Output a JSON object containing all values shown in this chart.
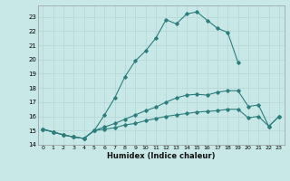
{
  "xlabel": "Humidex (Indice chaleur)",
  "bg_color": "#c8e8e8",
  "grid_color": "#b8d8d8",
  "line_color": "#2e7d7d",
  "xlim": [
    -0.5,
    23.5
  ],
  "ylim": [
    14.0,
    23.8
  ],
  "yticks": [
    14,
    15,
    16,
    17,
    18,
    19,
    20,
    21,
    22,
    23
  ],
  "xticks": [
    0,
    1,
    2,
    3,
    4,
    5,
    6,
    7,
    8,
    9,
    10,
    11,
    12,
    13,
    14,
    15,
    16,
    17,
    18,
    19,
    20,
    21,
    22,
    23
  ],
  "line1_x": [
    0,
    1,
    2,
    3,
    4,
    5,
    6,
    7,
    8,
    9,
    10,
    11,
    12,
    13,
    14,
    15,
    16,
    17,
    18,
    19
  ],
  "line1_y": [
    15.1,
    14.9,
    14.7,
    14.55,
    14.45,
    15.0,
    16.1,
    17.3,
    18.8,
    19.9,
    20.6,
    21.5,
    22.8,
    22.5,
    23.2,
    23.35,
    22.75,
    22.2,
    21.9,
    19.8
  ],
  "line2_x": [
    0,
    1,
    2,
    3,
    4,
    5,
    6,
    7,
    8,
    9,
    10,
    11,
    12,
    13,
    14,
    15,
    16,
    17,
    18,
    19,
    20,
    21,
    22,
    23
  ],
  "line2_y": [
    15.1,
    14.9,
    14.7,
    14.55,
    14.45,
    15.0,
    15.25,
    15.5,
    15.8,
    16.1,
    16.4,
    16.65,
    17.0,
    17.3,
    17.5,
    17.55,
    17.5,
    17.7,
    17.8,
    17.8,
    16.7,
    16.8,
    15.3,
    16.0
  ],
  "line3_x": [
    0,
    1,
    2,
    3,
    4,
    5,
    6,
    7,
    8,
    9,
    10,
    11,
    12,
    13,
    14,
    15,
    16,
    17,
    18,
    19,
    20,
    21,
    22,
    23
  ],
  "line3_y": [
    15.1,
    14.9,
    14.7,
    14.55,
    14.45,
    15.0,
    15.1,
    15.2,
    15.4,
    15.5,
    15.7,
    15.85,
    16.0,
    16.1,
    16.2,
    16.3,
    16.35,
    16.4,
    16.5,
    16.5,
    15.9,
    16.0,
    15.3,
    16.0
  ]
}
